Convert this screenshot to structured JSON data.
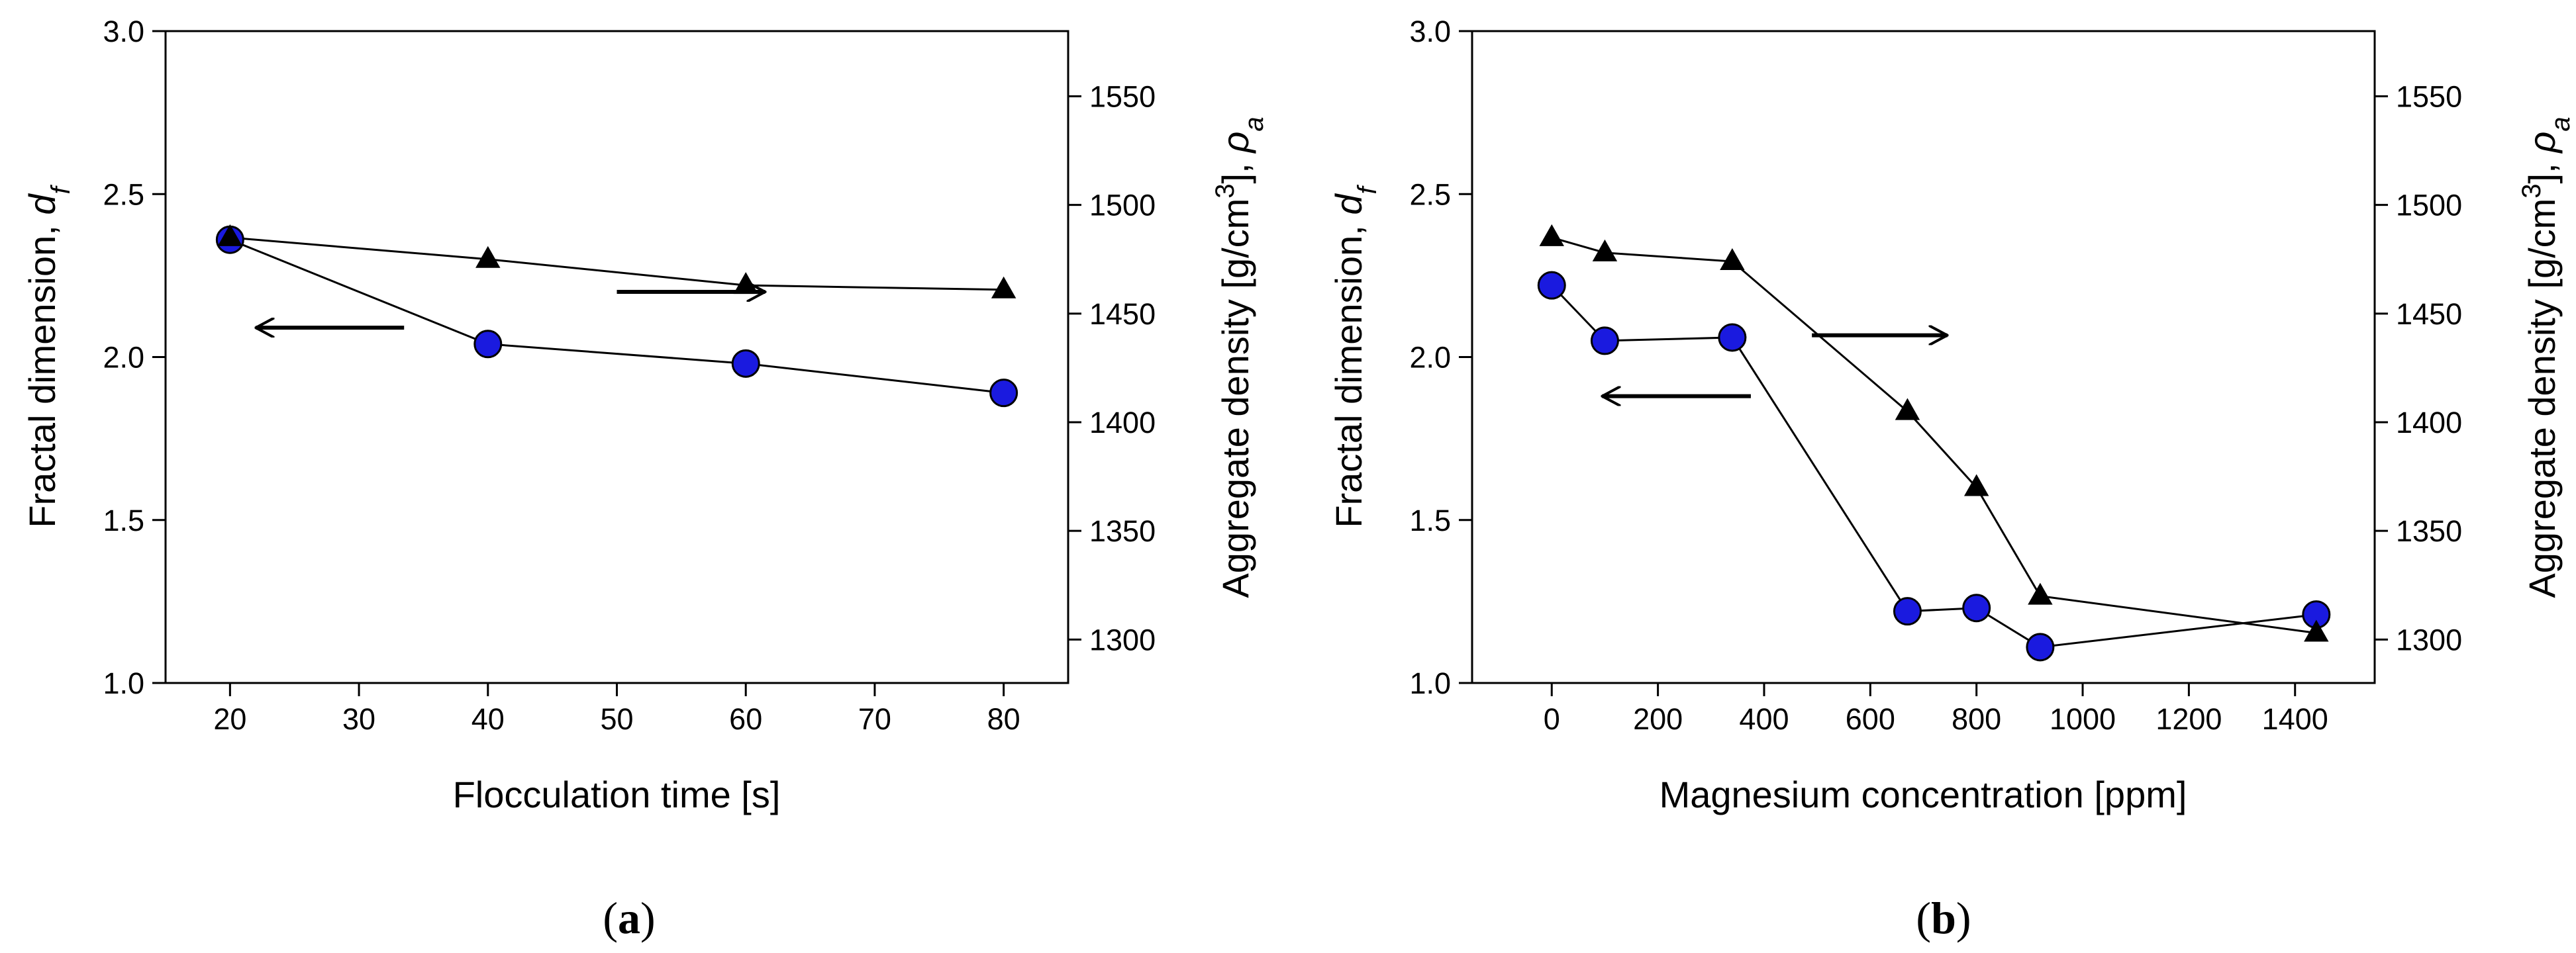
{
  "chart_data": [
    {
      "type": "line",
      "panel_label": "a",
      "xlabel": "Flocculation time [s]",
      "ylabel_left": "Fractal dimension, ",
      "ylabel_left_symbol": "d",
      "ylabel_left_sub": "f",
      "ylabel_right": "Aggregate density [g/cm",
      "ylabel_right_sup": "3",
      "ylabel_right_tail": "], ",
      "ylabel_right_symbol": "ρ",
      "ylabel_right_sub": "a",
      "xlim": [
        15,
        85
      ],
      "ylim_left": [
        1.0,
        3.0
      ],
      "ylim_right": [
        1280,
        1580
      ],
      "xticks": [
        20,
        30,
        40,
        50,
        60,
        70,
        80
      ],
      "xtick_labels": [
        "20",
        "30",
        "40",
        "50",
        "60",
        "70",
        "80"
      ],
      "yticks_left": [
        1.0,
        1.5,
        2.0,
        2.5,
        3.0
      ],
      "ytick_labels_left": [
        "1.0",
        "1.5",
        "2.0",
        "2.5",
        "3.0"
      ],
      "yticks_right": [
        1300,
        1350,
        1400,
        1450,
        1500,
        1550
      ],
      "ytick_labels_right": [
        "1300",
        "1350",
        "1400",
        "1450",
        "1500",
        "1550"
      ],
      "grid": false,
      "series": [
        {
          "name": "Fractal dimension",
          "axis": "left",
          "marker": "circle",
          "color": "#1a1adf",
          "x": [
            20,
            40,
            60,
            80
          ],
          "values": [
            2.36,
            2.04,
            1.98,
            1.89
          ]
        },
        {
          "name": "Aggregate density",
          "axis": "right",
          "marker": "triangle",
          "color": "#000000",
          "x": [
            20,
            40,
            60,
            80
          ],
          "values": [
            1485,
            1475,
            1463,
            1461
          ]
        }
      ],
      "annotations": [
        {
          "kind": "arrow",
          "direction": "right",
          "axis": "right",
          "x_from": 50,
          "x_to": 61.5,
          "y": 1460
        },
        {
          "kind": "arrow",
          "direction": "left",
          "axis": "left",
          "x_from": 33.5,
          "x_to": 22,
          "y": 2.09
        }
      ]
    },
    {
      "type": "line",
      "panel_label": "b",
      "xlabel": "Magnesium concentration [ppm]",
      "ylabel_left": "Fractal dimension, ",
      "ylabel_left_symbol": "d",
      "ylabel_left_sub": "f",
      "ylabel_right": "Aggregate density [g/cm",
      "ylabel_right_sup": "3",
      "ylabel_right_tail": "], ",
      "ylabel_right_symbol": "ρ",
      "ylabel_right_sub": "a",
      "xlim": [
        -150,
        1550
      ],
      "ylim_left": [
        1.0,
        3.0
      ],
      "ylim_right": [
        1280,
        1580
      ],
      "xticks": [
        0,
        200,
        400,
        600,
        800,
        1000,
        1200,
        1400
      ],
      "xtick_labels": [
        "0",
        "200",
        "400",
        "600",
        "800",
        "1000",
        "1200",
        "1400"
      ],
      "yticks_left": [
        1.0,
        1.5,
        2.0,
        2.5,
        3.0
      ],
      "ytick_labels_left": [
        "1.0",
        "1.5",
        "2.0",
        "2.5",
        "3.0"
      ],
      "yticks_right": [
        1300,
        1350,
        1400,
        1450,
        1500,
        1550
      ],
      "ytick_labels_right": [
        "1300",
        "1350",
        "1400",
        "1450",
        "1500",
        "1550"
      ],
      "grid": false,
      "series": [
        {
          "name": "Fractal dimension",
          "axis": "left",
          "marker": "circle",
          "color": "#1a1adf",
          "x": [
            0,
            100,
            340,
            670,
            800,
            920,
            1440
          ],
          "values": [
            2.22,
            2.05,
            2.06,
            1.22,
            1.23,
            1.11,
            1.21
          ]
        },
        {
          "name": "Aggregate density",
          "axis": "right",
          "marker": "triangle",
          "color": "#000000",
          "x": [
            0,
            100,
            340,
            670,
            800,
            920,
            1440
          ],
          "values": [
            1485,
            1478,
            1474,
            1405,
            1370,
            1320,
            1303
          ]
        }
      ],
      "annotations": [
        {
          "kind": "arrow",
          "direction": "right",
          "axis": "right",
          "x_from": 490,
          "x_to": 745,
          "y": 1440
        },
        {
          "kind": "arrow",
          "direction": "left",
          "axis": "left",
          "x_from": 375,
          "x_to": 95,
          "y": 1.88
        }
      ]
    }
  ]
}
